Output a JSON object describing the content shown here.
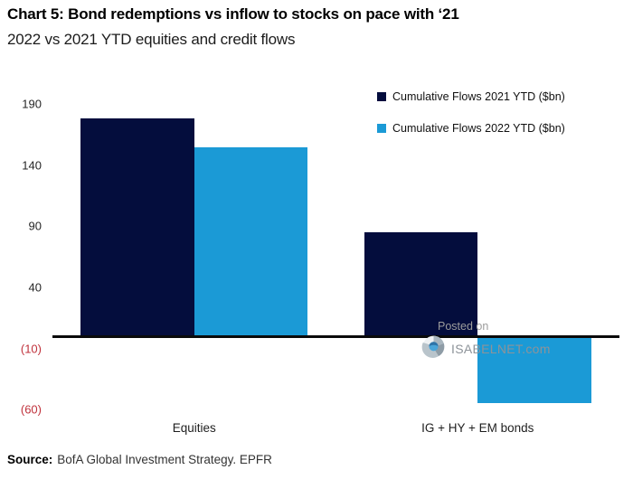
{
  "header": {
    "title": "Chart 5: Bond redemptions vs inflow to stocks on pace with ‘21",
    "subtitle": "2022 vs 2021 YTD equities and credit flows"
  },
  "chart_data": {
    "type": "bar",
    "title": "Chart 5: Bond redemptions vs inflow to stocks on pace with ‘21",
    "subtitle": "2022 vs 2021 YTD equities and credit flows",
    "categories": [
      "Equities",
      "IG + HY + EM bonds"
    ],
    "series": [
      {
        "name": "Cumulative Flows 2021 YTD ($bn)",
        "color": "#040d3d",
        "values": [
          178,
          85
        ]
      },
      {
        "name": "Cumulative Flows 2022 YTD ($bn)",
        "color": "#1b9ad6",
        "values": [
          155,
          -55
        ]
      }
    ],
    "xlabel": "",
    "ylabel": "",
    "yticks": [
      190,
      140,
      90,
      40,
      -10,
      -60
    ],
    "ytick_labels": [
      "190",
      "140",
      "90",
      "40",
      "(10)",
      "(60)"
    ],
    "ylim": [
      -75,
      205
    ],
    "grid": false,
    "legend_position": "top-right",
    "negative_tick_color": "#c0323c",
    "axis_line_color": "#0a0a0a"
  },
  "watermark": {
    "line1": "Posted on",
    "line2": "ISABELNET.com"
  },
  "source": {
    "label": "Source:",
    "text": "BofA Global Investment Strategy. EPFR"
  }
}
